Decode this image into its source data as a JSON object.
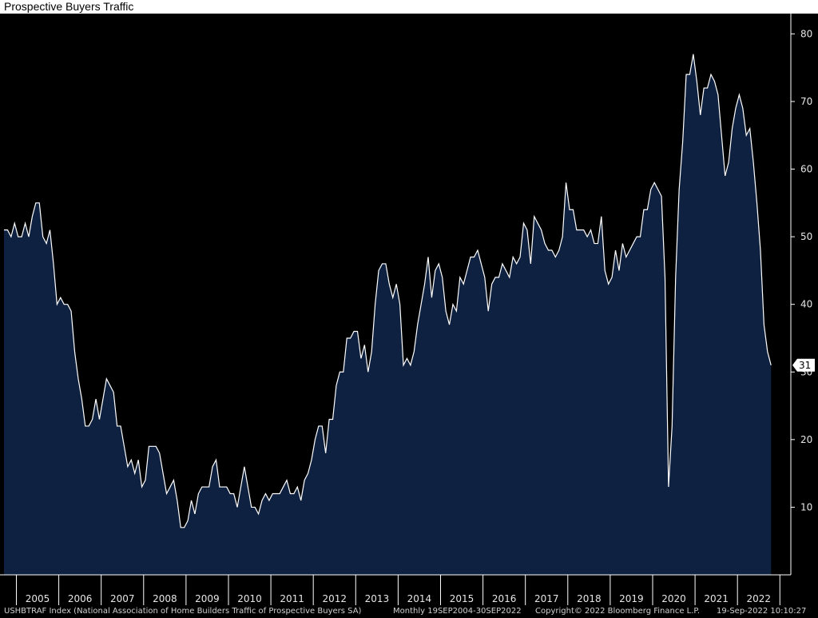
{
  "header": {
    "title": "Prospective Buyers Traffic"
  },
  "footer": {
    "ticker": "USHBTRAF Index (National Association of Home Builders Traffic of Prospective Buyers SA)",
    "range": "Monthly 19SEP2004-30SEP2022",
    "copyright": "Copyright© 2022 Bloomberg Finance L.P.",
    "timestamp": "19-Sep-2022 10:10:27"
  },
  "colors": {
    "fill": "#0f2140",
    "line": "#ffffff",
    "background": "#000000",
    "axis": "#ffffff"
  },
  "chart_data": {
    "type": "area",
    "ylim": [
      0,
      83
    ],
    "yticks": [
      10,
      20,
      30,
      40,
      50,
      60,
      70,
      80
    ],
    "year_labels": [
      "2005",
      "2006",
      "2007",
      "2008",
      "2009",
      "2010",
      "2011",
      "2012",
      "2013",
      "2014",
      "2015",
      "2016",
      "2017",
      "2018",
      "2019",
      "2020",
      "2021",
      "2022"
    ],
    "last_value_label": "31",
    "start": "2004-09",
    "end": "2022-09",
    "values": [
      51,
      51,
      50,
      52,
      50,
      50,
      52,
      50,
      53,
      55,
      55,
      50,
      49,
      51,
      46,
      40,
      41,
      40,
      40,
      39,
      33,
      29,
      26,
      22,
      22,
      23,
      26,
      23,
      26,
      29,
      28,
      27,
      22,
      22,
      19,
      16,
      17,
      15,
      17,
      13,
      14,
      19,
      19,
      19,
      18,
      15,
      12,
      13,
      14,
      11,
      7,
      7,
      8,
      11,
      9,
      12,
      13,
      13,
      13,
      16,
      17,
      13,
      13,
      13,
      12,
      12,
      10,
      13,
      16,
      13,
      10,
      10,
      9,
      11,
      12,
      11,
      12,
      12,
      12,
      13,
      14,
      12,
      12,
      13,
      11,
      14,
      15,
      17,
      20,
      22,
      22,
      18,
      23,
      23,
      28,
      30,
      30,
      35,
      35,
      36,
      36,
      32,
      34,
      30,
      33,
      40,
      45,
      46,
      46,
      43,
      41,
      43,
      40,
      31,
      32,
      31,
      33,
      37,
      40,
      43,
      47,
      41,
      45,
      46,
      44,
      39,
      37,
      40,
      39,
      44,
      43,
      45,
      47,
      47,
      48,
      46,
      44,
      39,
      43,
      44,
      44,
      46,
      45,
      44,
      47,
      46,
      47,
      52,
      51,
      46,
      53,
      52,
      51,
      49,
      48,
      48,
      47,
      48,
      50,
      58,
      54,
      54,
      51,
      51,
      51,
      50,
      51,
      49,
      49,
      53,
      45,
      43,
      44,
      48,
      45,
      49,
      47,
      48,
      49,
      50,
      50,
      54,
      54,
      57,
      58,
      57,
      56,
      44,
      13,
      22,
      44,
      57,
      64,
      74,
      74,
      77,
      73,
      68,
      72,
      72,
      74,
      73,
      71,
      65,
      59,
      61,
      66,
      69,
      71,
      69,
      65,
      66,
      61,
      55,
      48,
      37,
      33,
      31
    ]
  }
}
